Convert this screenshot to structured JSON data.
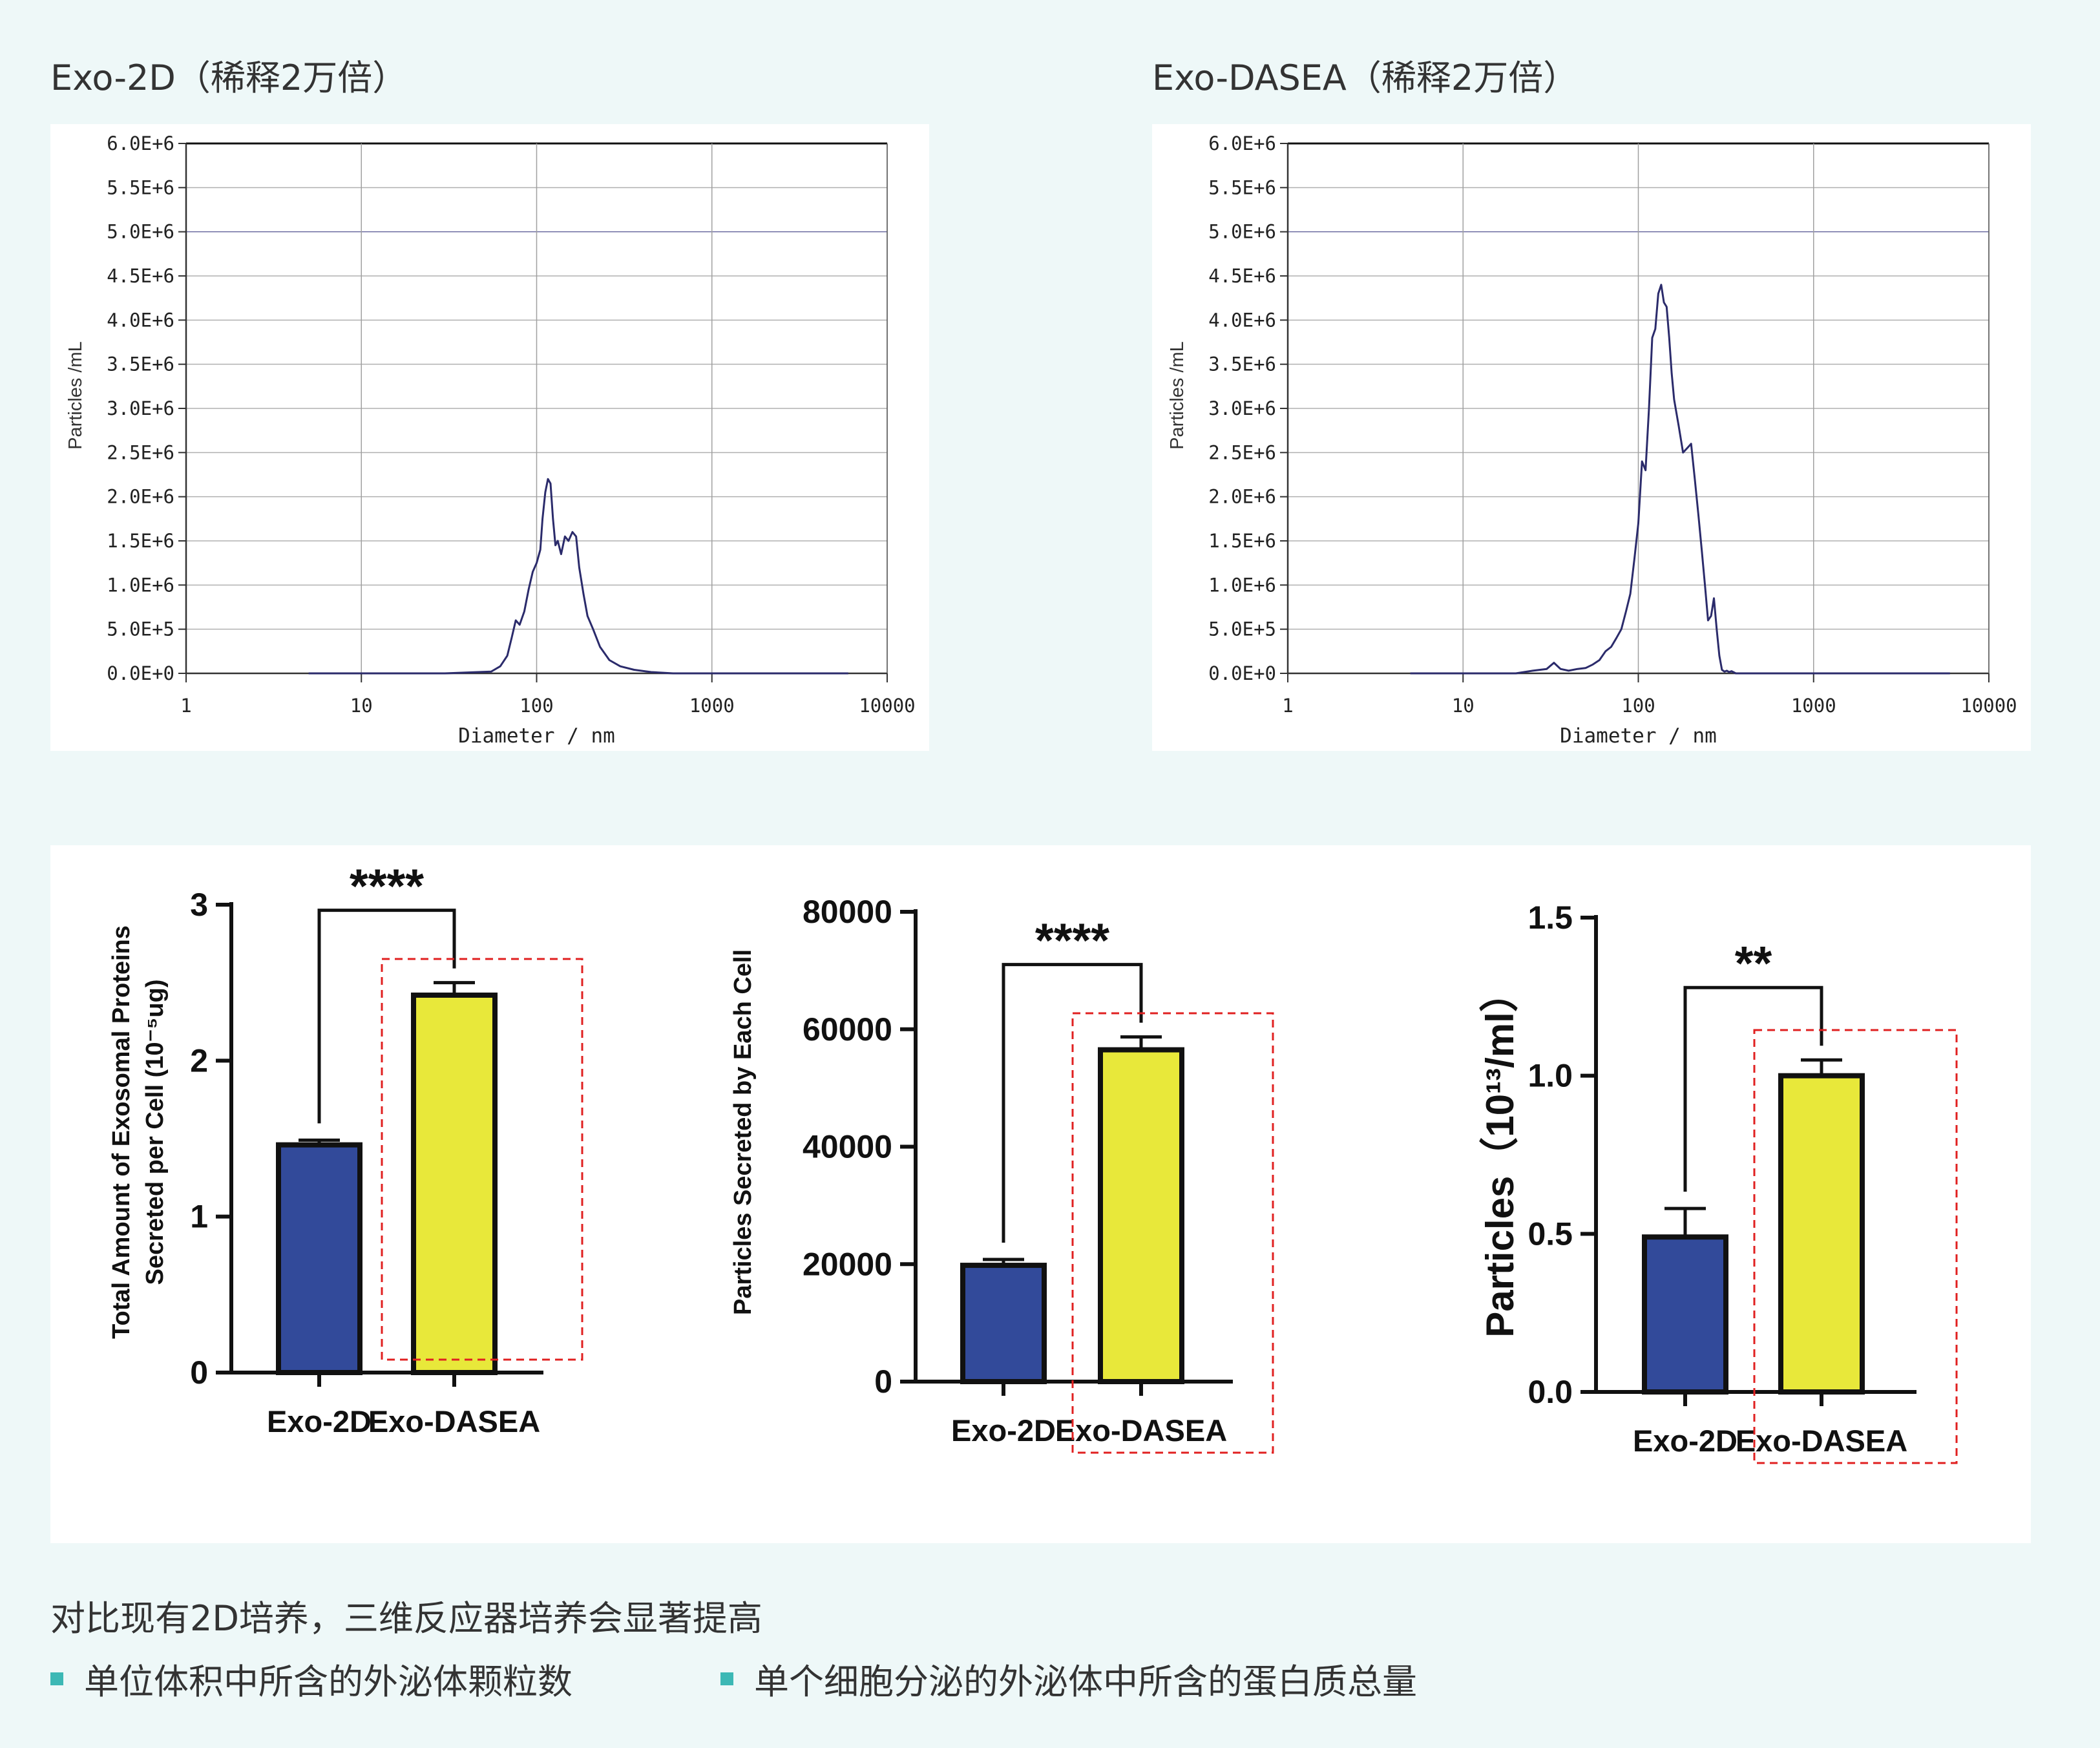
{
  "titles": {
    "left": "Exo-2D（稀释2万倍）",
    "right": "Exo-DASEA（稀释2万倍）"
  },
  "colors": {
    "line": "#2b2b6b",
    "bar_2d": "#324a9a",
    "bar_dasea": "#e8e83a",
    "highlight": "#e02020",
    "bullet": "#3cb8b5"
  },
  "chart_data": [
    {
      "type": "line",
      "title": "Exo-2D（稀释2万倍）",
      "xlabel": "Diameter / nm",
      "ylabel": "Particles /mL",
      "x_scale": "log",
      "xlim": [
        1,
        10000
      ],
      "ylim": [
        0,
        6000000
      ],
      "x_ticks": [
        "1",
        "10",
        "100",
        "1000",
        "10000"
      ],
      "y_ticks": [
        "0.0E+0",
        "5.0E+5",
        "1.0E+6",
        "1.5E+6",
        "2.0E+6",
        "2.5E+6",
        "3.0E+6",
        "3.5E+6",
        "4.0E+6",
        "4.5E+6",
        "5.0E+6",
        "5.5E+6",
        "6.0E+6"
      ],
      "grid": true,
      "x": [
        5,
        30,
        55,
        62,
        68,
        72,
        76,
        80,
        85,
        90,
        95,
        100,
        105,
        108,
        112,
        116,
        120,
        124,
        128,
        132,
        138,
        145,
        152,
        160,
        168,
        175,
        185,
        195,
        210,
        230,
        260,
        300,
        360,
        450,
        600,
        1500,
        6000
      ],
      "y": [
        0,
        0,
        20000,
        80000,
        200000,
        400000,
        600000,
        550000,
        700000,
        950000,
        1150000,
        1250000,
        1400000,
        1750000,
        2050000,
        2200000,
        2150000,
        1750000,
        1450000,
        1500000,
        1350000,
        1550000,
        1500000,
        1600000,
        1550000,
        1200000,
        900000,
        650000,
        500000,
        300000,
        150000,
        80000,
        40000,
        15000,
        0,
        0,
        0
      ]
    },
    {
      "type": "line",
      "title": "Exo-DASEA（稀释2万倍）",
      "xlabel": "Diameter / nm",
      "ylabel": "Particles /mL",
      "x_scale": "log",
      "xlim": [
        1,
        10000
      ],
      "ylim": [
        0,
        6000000
      ],
      "x_ticks": [
        "1",
        "10",
        "100",
        "1000",
        "10000"
      ],
      "y_ticks": [
        "0.0E+0",
        "5.0E+5",
        "1.0E+6",
        "1.5E+6",
        "2.0E+6",
        "2.5E+6",
        "3.0E+6",
        "3.5E+6",
        "4.0E+6",
        "4.5E+6",
        "5.0E+6",
        "5.5E+6",
        "6.0E+6"
      ],
      "grid": true,
      "x": [
        5,
        20,
        25,
        30,
        33,
        36,
        40,
        45,
        50,
        55,
        60,
        65,
        70,
        75,
        80,
        85,
        90,
        95,
        100,
        105,
        110,
        115,
        120,
        125,
        130,
        135,
        140,
        145,
        150,
        155,
        160,
        170,
        180,
        190,
        200,
        210,
        220,
        230,
        240,
        250,
        260,
        270,
        280,
        290,
        300,
        310,
        320,
        330,
        340,
        360,
        400,
        450,
        600,
        1500,
        6000
      ],
      "y": [
        0,
        0,
        30000,
        50000,
        120000,
        50000,
        30000,
        50000,
        60000,
        100000,
        150000,
        250000,
        300000,
        400000,
        500000,
        700000,
        900000,
        1300000,
        1700000,
        2400000,
        2300000,
        3000000,
        3800000,
        3900000,
        4300000,
        4400000,
        4200000,
        4150000,
        3800000,
        3400000,
        3100000,
        2800000,
        2500000,
        2550000,
        2600000,
        2200000,
        1800000,
        1400000,
        1000000,
        600000,
        650000,
        850000,
        500000,
        200000,
        40000,
        20000,
        30000,
        15000,
        25000,
        0,
        0,
        0,
        0,
        0,
        0
      ]
    },
    {
      "type": "bar",
      "ylabel_line1": "Total Amount of Exosomal Proteins",
      "ylabel_line2": "Secreted per Cell (10⁻⁵ug)",
      "categories": [
        "Exo-2D",
        "Exo-DASEA"
      ],
      "values": [
        1.46,
        2.42
      ],
      "errors": [
        0.03,
        0.08
      ],
      "ylim": [
        0,
        3
      ],
      "y_ticks": [
        "0",
        "1",
        "2",
        "3"
      ],
      "significance": "****"
    },
    {
      "type": "bar",
      "ylabel": "Particles Secreted by Each Cell",
      "categories": [
        "Exo-2D",
        "Exo-DASEA"
      ],
      "values": [
        19800,
        56500
      ],
      "errors": [
        1000,
        2200
      ],
      "ylim": [
        0,
        80000
      ],
      "y_ticks": [
        "0",
        "20000",
        "40000",
        "60000",
        "80000"
      ],
      "significance": "****"
    },
    {
      "type": "bar",
      "ylabel": "Particles（10¹³/ml）",
      "categories": [
        "Exo-2D",
        "Exo-DASEA"
      ],
      "values": [
        0.49,
        1.0
      ],
      "errors": [
        0.09,
        0.05
      ],
      "ylim": [
        0,
        1.5
      ],
      "y_ticks": [
        "0.0",
        "0.5",
        "1.0",
        "1.5"
      ],
      "significance": "**"
    }
  ],
  "caption": "对比现有2D培养，三维反应器培养会显著提高",
  "bullets": [
    "单位体积中所含的外泌体颗粒数",
    "单个细胞分泌的外泌体中所含的蛋白质总量"
  ]
}
